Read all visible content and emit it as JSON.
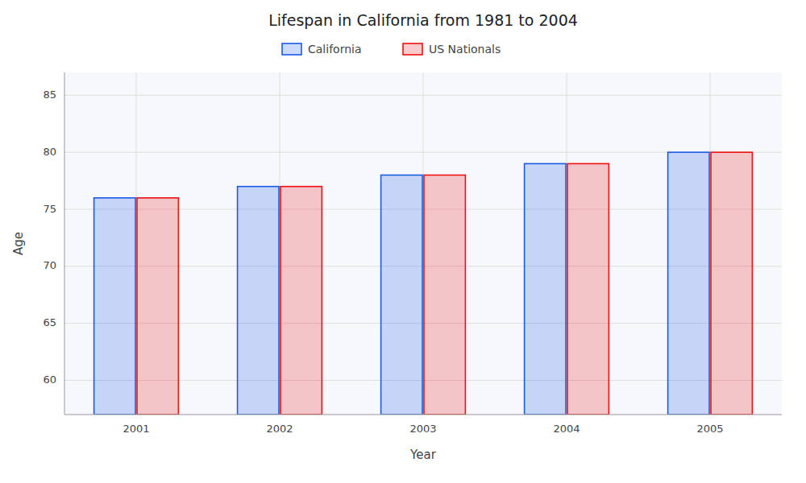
{
  "chart_data": {
    "type": "bar",
    "title": "Lifespan in California from 1981 to 2004",
    "x_label": "Year",
    "y_label": "Age",
    "categories": [
      "2001",
      "2002",
      "2003",
      "2004",
      "2005"
    ],
    "series": [
      {
        "name": "California",
        "color": "#1a5ce6",
        "values": [
          76,
          77,
          78,
          79,
          80
        ]
      },
      {
        "name": "US Nationals",
        "color": "#ee1111",
        "values": [
          76,
          77,
          78,
          79,
          80
        ]
      }
    ],
    "ylim": [
      57,
      87
    ],
    "yticks": [
      60,
      65,
      70,
      75,
      80,
      85
    ],
    "grid": true,
    "legend": "top"
  }
}
